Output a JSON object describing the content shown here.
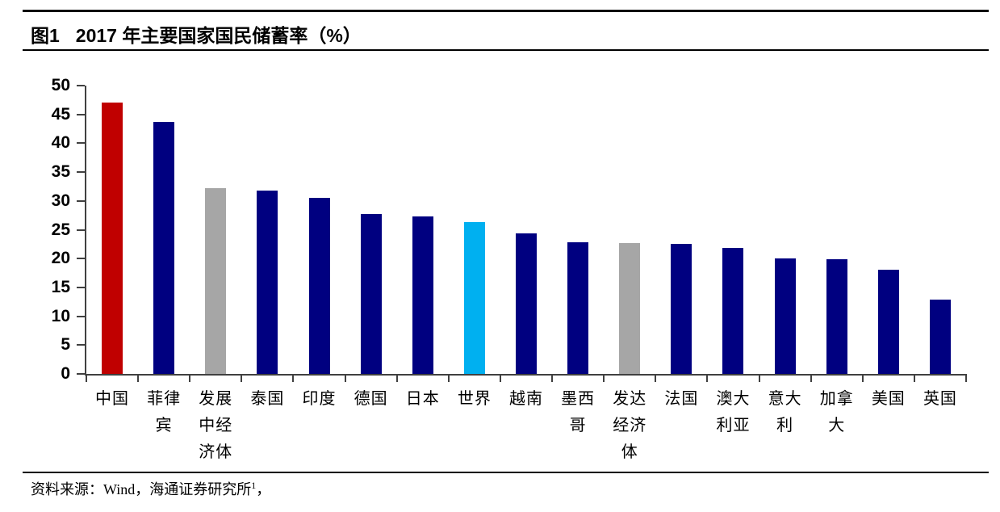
{
  "page": {
    "figure_label": "图1",
    "title": "2017 年主要国家国民储蓄率（%）",
    "source_prefix": "资料来源：Wind，海通证券研究所",
    "source_footnote": "1",
    "source_tail": "，"
  },
  "chart_data": {
    "type": "bar",
    "title": "图1 2017 年主要国家国民储蓄率（%）",
    "unit": "%",
    "categories": [
      "中国",
      "菲律宾",
      "发展中经济体",
      "泰国",
      "印度",
      "德国",
      "日本",
      "世界",
      "越南",
      "墨西哥",
      "发达经济体",
      "法国",
      "澳大利亚",
      "意大利",
      "加拿大",
      "美国",
      "英国"
    ],
    "values": [
      47.0,
      43.7,
      32.2,
      31.8,
      30.6,
      27.8,
      27.3,
      26.4,
      24.4,
      22.8,
      22.7,
      22.6,
      21.8,
      20.0,
      19.9,
      18.0,
      12.9
    ],
    "bar_colors": [
      "#C00000",
      "#000080",
      "#A6A6A6",
      "#000080",
      "#000080",
      "#000080",
      "#000080",
      "#00B0F0",
      "#000080",
      "#000080",
      "#A6A6A6",
      "#000080",
      "#000080",
      "#000080",
      "#000080",
      "#000080",
      "#000080"
    ],
    "xlabel": "",
    "ylabel": "",
    "ylim": [
      0,
      50
    ],
    "ytick_step": 5,
    "grid": false,
    "legend": null
  },
  "colors": {
    "highlight_red": "#C00000",
    "primary_navy": "#000080",
    "neutral_gray": "#A6A6A6",
    "world_cyan": "#00B0F0",
    "axis": "#404040",
    "rule": "#000000"
  }
}
